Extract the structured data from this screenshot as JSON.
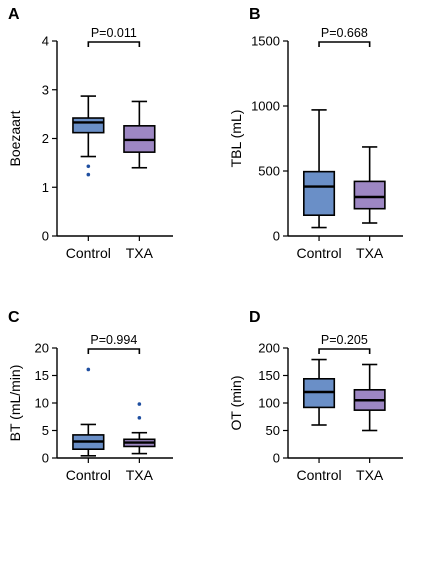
{
  "colors": {
    "control": "#6a8fc7",
    "txa": "#9d87c3",
    "outlier": "#1f4fa0"
  },
  "chart_data": [
    {
      "panel": "A",
      "type": "box",
      "ylabel": "Boezaart",
      "ylim": [
        0,
        4
      ],
      "yticks": [
        "0",
        "1",
        "2",
        "3",
        "4"
      ],
      "ytick_values": [
        0,
        1,
        2,
        3,
        4
      ],
      "categories": [
        "Control",
        "TXA"
      ],
      "pvalue": "P=0.011",
      "boxes": [
        {
          "name": "Control",
          "min": 1.63,
          "q1": 2.12,
          "median": 2.33,
          "q3": 2.42,
          "max": 2.87,
          "outliers": [
            1.43,
            1.26
          ]
        },
        {
          "name": "TXA",
          "min": 1.4,
          "q1": 1.72,
          "median": 1.97,
          "q3": 2.26,
          "max": 2.76,
          "outliers": []
        }
      ]
    },
    {
      "panel": "B",
      "type": "box",
      "ylabel": "TBL (mL)",
      "ylim": [
        0,
        1500
      ],
      "yticks": [
        "0",
        "500",
        "1000",
        "1500"
      ],
      "ytick_values": [
        0,
        500,
        1000,
        1500
      ],
      "categories": [
        "Control",
        "TXA"
      ],
      "pvalue": "P=0.668",
      "boxes": [
        {
          "name": "Control",
          "min": 65,
          "q1": 160,
          "median": 380,
          "q3": 495,
          "max": 970,
          "outliers": []
        },
        {
          "name": "TXA",
          "min": 100,
          "q1": 210,
          "median": 300,
          "q3": 420,
          "max": 685,
          "outliers": []
        }
      ]
    },
    {
      "panel": "C",
      "type": "box",
      "ylabel": "BT (mL/min)",
      "ylim": [
        0,
        20
      ],
      "yticks": [
        "0",
        "5",
        "10",
        "15",
        "20"
      ],
      "ytick_values": [
        0,
        5,
        10,
        15,
        20
      ],
      "categories": [
        "Control",
        "TXA"
      ],
      "pvalue": "P=0.994",
      "boxes": [
        {
          "name": "Control",
          "min": 0.4,
          "q1": 1.6,
          "median": 3.0,
          "q3": 4.2,
          "max": 6.1,
          "outliers": [
            16.1
          ]
        },
        {
          "name": "TXA",
          "min": 0.8,
          "q1": 2.1,
          "median": 2.8,
          "q3": 3.4,
          "max": 4.6,
          "outliers": [
            9.8,
            7.3
          ]
        }
      ]
    },
    {
      "panel": "D",
      "type": "box",
      "ylabel": "OT (min)",
      "ylim": [
        0,
        200
      ],
      "yticks": [
        "0",
        "50",
        "100",
        "150",
        "200"
      ],
      "ytick_values": [
        0,
        50,
        100,
        150,
        200
      ],
      "categories": [
        "Control",
        "TXA"
      ],
      "pvalue": "P=0.205",
      "boxes": [
        {
          "name": "Control",
          "min": 60,
          "q1": 92,
          "median": 120,
          "q3": 144,
          "max": 179,
          "outliers": []
        },
        {
          "name": "TXA",
          "min": 50,
          "q1": 87,
          "median": 105,
          "q3": 124,
          "max": 170,
          "outliers": []
        }
      ]
    }
  ]
}
